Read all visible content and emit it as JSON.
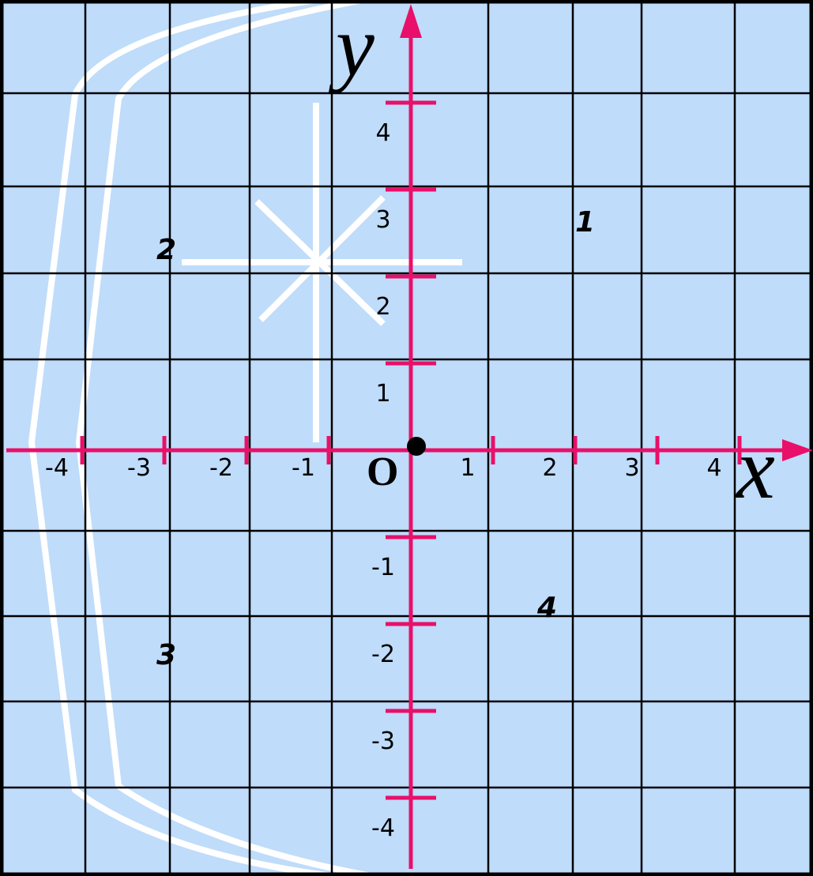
{
  "axes": {
    "x_label": "x",
    "y_label": "y",
    "origin": "O",
    "x_ticks": [
      -4,
      -3,
      -2,
      -1,
      1,
      2,
      3,
      4
    ],
    "y_ticks": [
      4,
      3,
      2,
      1,
      -1,
      -2,
      -3,
      -4
    ]
  },
  "quadrants": [
    "1",
    "2",
    "3",
    "4"
  ]
}
